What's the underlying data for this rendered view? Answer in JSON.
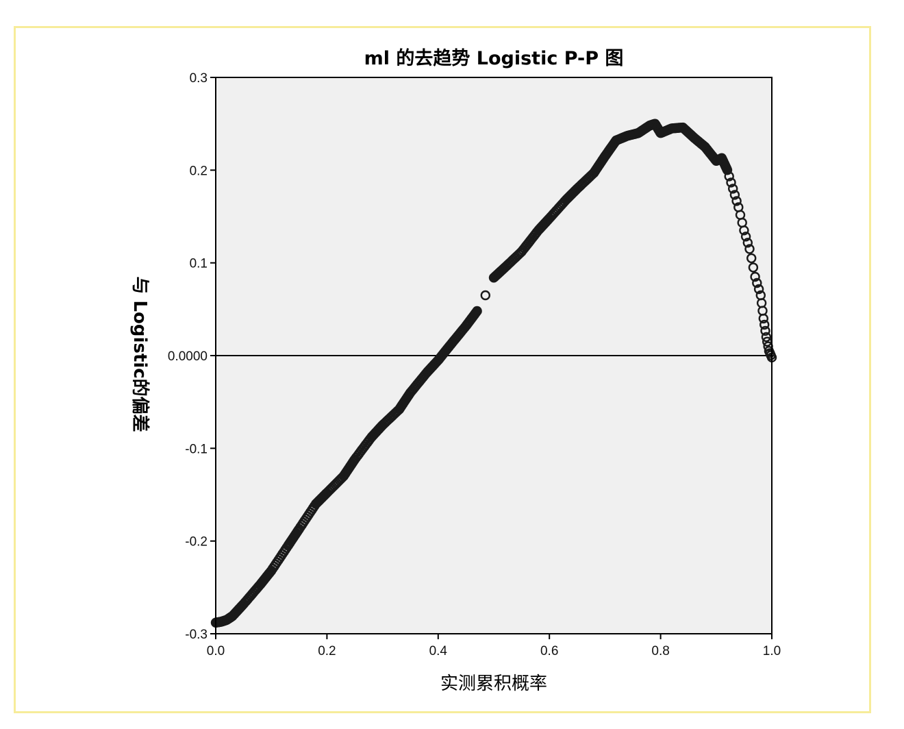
{
  "chart_data": {
    "type": "scatter",
    "title": "ml 的去趋势 Logistic P-P 图",
    "xlabel": "实测累积概率",
    "ylabel": "与 Logistic的偏差",
    "xlim": [
      0.0,
      1.0
    ],
    "ylim": [
      -0.3,
      0.3
    ],
    "xticks": [
      "0.0",
      "0.2",
      "0.4",
      "0.6",
      "0.8",
      "1.0"
    ],
    "yticks": [
      "-0.3",
      "-0.2",
      "-0.1",
      "0.0000",
      "0.1",
      "0.2",
      "0.3"
    ],
    "reference_line_y": 0.0,
    "plot_background": "#f0f0f0",
    "marker": "open-circle",
    "grid": false,
    "points": [
      {
        "x": 0.0,
        "y": -0.288
      },
      {
        "x": 0.01,
        "y": -0.287
      },
      {
        "x": 0.02,
        "y": -0.285
      },
      {
        "x": 0.03,
        "y": -0.281
      },
      {
        "x": 0.05,
        "y": -0.268
      },
      {
        "x": 0.08,
        "y": -0.247
      },
      {
        "x": 0.1,
        "y": -0.232
      },
      {
        "x": 0.13,
        "y": -0.205
      },
      {
        "x": 0.15,
        "y": -0.187
      },
      {
        "x": 0.18,
        "y": -0.16
      },
      {
        "x": 0.2,
        "y": -0.148
      },
      {
        "x": 0.23,
        "y": -0.13
      },
      {
        "x": 0.25,
        "y": -0.112
      },
      {
        "x": 0.28,
        "y": -0.088
      },
      {
        "x": 0.3,
        "y": -0.075
      },
      {
        "x": 0.33,
        "y": -0.058
      },
      {
        "x": 0.35,
        "y": -0.04
      },
      {
        "x": 0.38,
        "y": -0.018
      },
      {
        "x": 0.4,
        "y": -0.005
      },
      {
        "x": 0.42,
        "y": 0.01
      },
      {
        "x": 0.45,
        "y": 0.032
      },
      {
        "x": 0.47,
        "y": 0.048
      },
      {
        "x": 0.485,
        "y": 0.065
      },
      {
        "x": 0.5,
        "y": 0.084
      },
      {
        "x": 0.52,
        "y": 0.095
      },
      {
        "x": 0.55,
        "y": 0.112
      },
      {
        "x": 0.58,
        "y": 0.135
      },
      {
        "x": 0.6,
        "y": 0.148
      },
      {
        "x": 0.63,
        "y": 0.168
      },
      {
        "x": 0.65,
        "y": 0.18
      },
      {
        "x": 0.68,
        "y": 0.197
      },
      {
        "x": 0.7,
        "y": 0.215
      },
      {
        "x": 0.72,
        "y": 0.232
      },
      {
        "x": 0.74,
        "y": 0.237
      },
      {
        "x": 0.76,
        "y": 0.24
      },
      {
        "x": 0.78,
        "y": 0.248
      },
      {
        "x": 0.79,
        "y": 0.25
      },
      {
        "x": 0.8,
        "y": 0.24
      },
      {
        "x": 0.82,
        "y": 0.245
      },
      {
        "x": 0.84,
        "y": 0.246
      },
      {
        "x": 0.86,
        "y": 0.235
      },
      {
        "x": 0.88,
        "y": 0.225
      },
      {
        "x": 0.9,
        "y": 0.21
      },
      {
        "x": 0.91,
        "y": 0.213
      },
      {
        "x": 0.92,
        "y": 0.2
      },
      {
        "x": 0.93,
        "y": 0.18
      },
      {
        "x": 0.94,
        "y": 0.16
      },
      {
        "x": 0.95,
        "y": 0.135
      },
      {
        "x": 0.96,
        "y": 0.115
      },
      {
        "x": 0.97,
        "y": 0.085
      },
      {
        "x": 0.98,
        "y": 0.065
      },
      {
        "x": 0.985,
        "y": 0.04
      },
      {
        "x": 0.99,
        "y": 0.02
      },
      {
        "x": 0.995,
        "y": 0.005
      },
      {
        "x": 1.0,
        "y": -0.002
      }
    ]
  }
}
